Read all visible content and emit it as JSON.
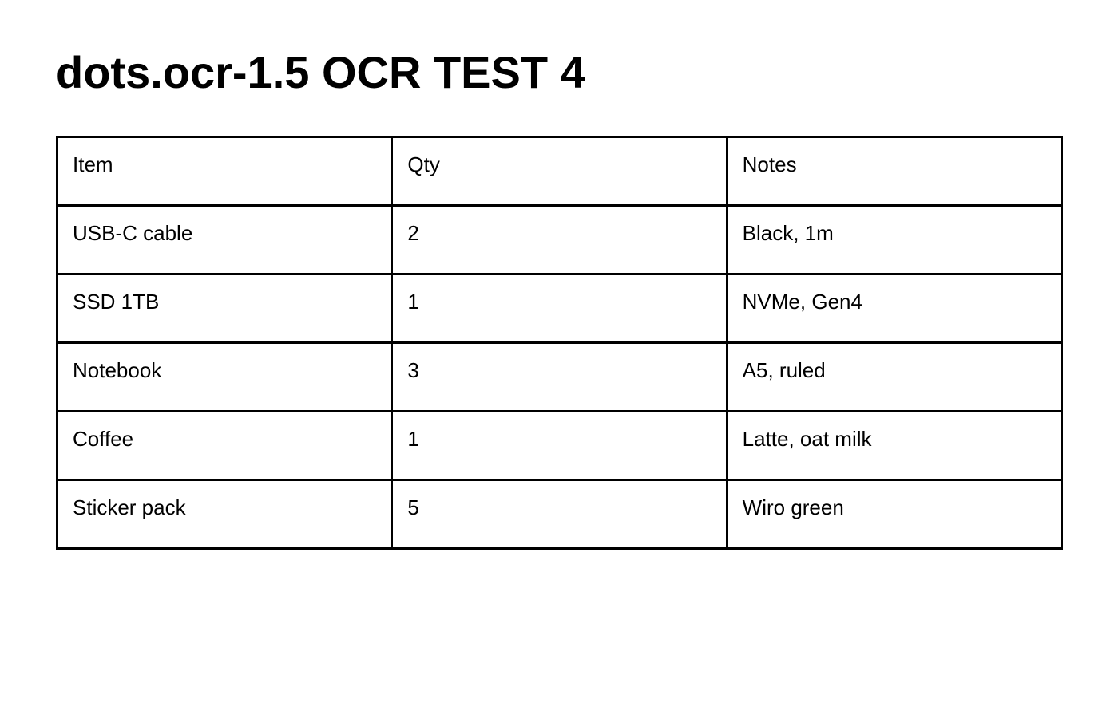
{
  "title": "dots.ocr-1.5 OCR TEST 4",
  "table": {
    "headers": [
      "Item",
      "Qty",
      "Notes"
    ],
    "rows": [
      [
        "USB-C cable",
        "2",
        "Black, 1m"
      ],
      [
        "SSD 1TB",
        "1",
        "NVMe, Gen4"
      ],
      [
        "Notebook",
        "3",
        "A5, ruled"
      ],
      [
        "Coffee",
        "1",
        "Latte, oat milk"
      ],
      [
        "Sticker pack",
        "5",
        "Wiro green"
      ]
    ]
  }
}
